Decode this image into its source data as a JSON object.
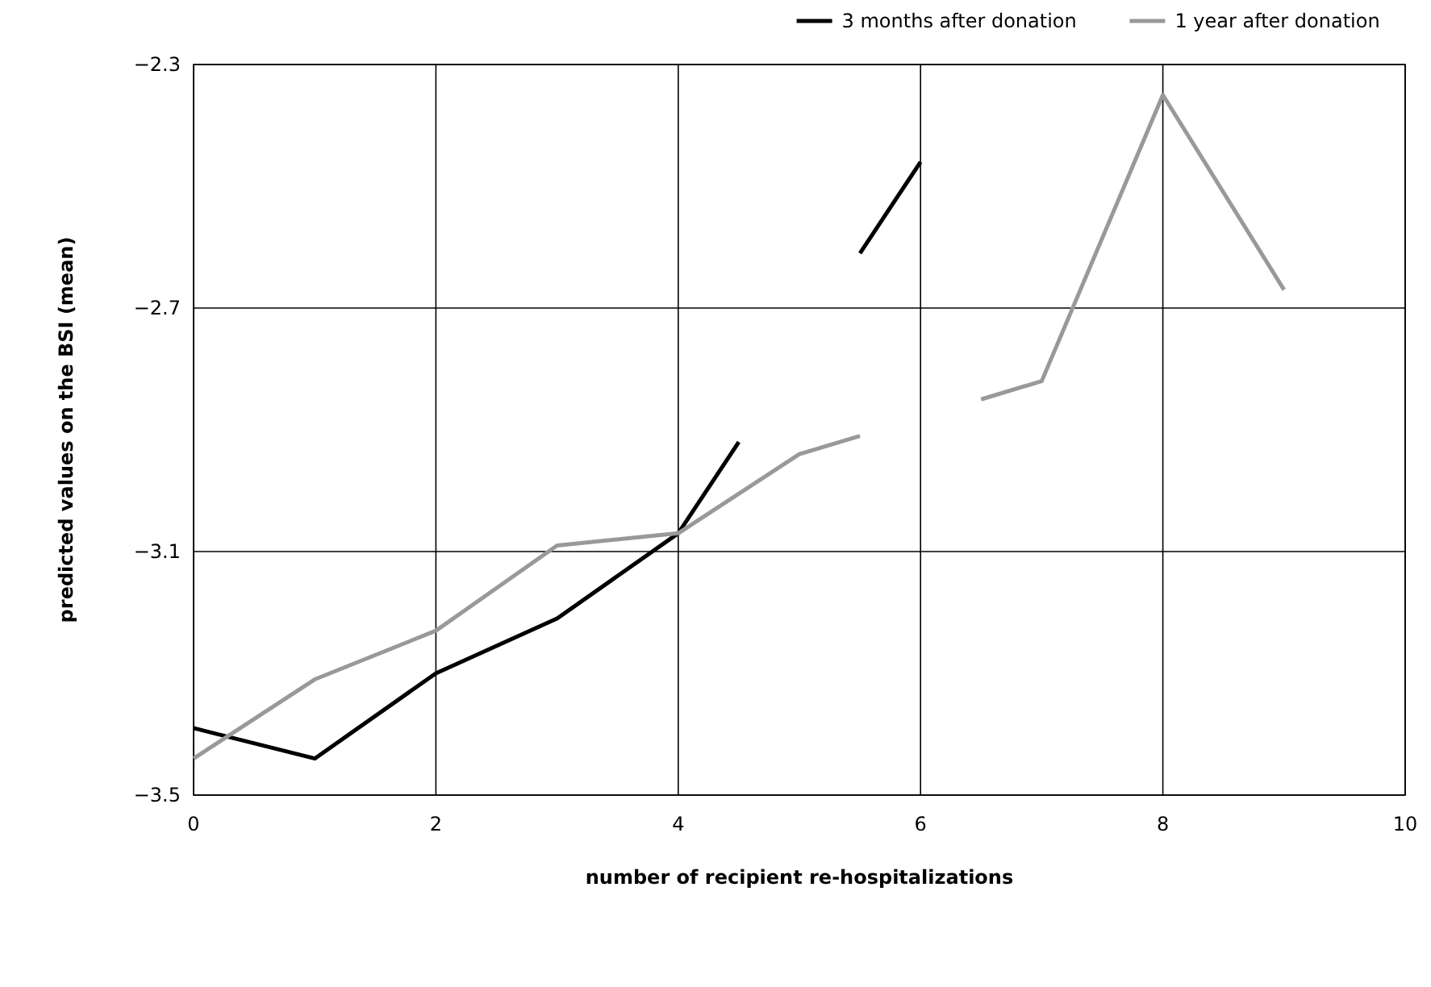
{
  "chart_data": {
    "type": "line",
    "xlabel": "number of recipient re-hospitalizations",
    "ylabel": "predicted values on the BSI (mean)",
    "xlim": [
      0,
      10
    ],
    "xticks": [
      0,
      2,
      4,
      6,
      8,
      10
    ],
    "ylim": [
      -3.5,
      -2.3
    ],
    "yticks": [
      {
        "value": -3.5,
        "label": "−3.5"
      },
      {
        "value": -3.1,
        "label": "−3.1"
      },
      {
        "value": -2.7,
        "label": "−2.7"
      },
      {
        "value": -2.3,
        "label": "−2.3"
      }
    ],
    "grid": true,
    "legend": "top right",
    "marker": "none",
    "line_style": "solid",
    "series": [
      {
        "name": "3 months after donation",
        "color": "#000000",
        "x": [
          0,
          1,
          2,
          3,
          4,
          4.5,
          5,
          5.5,
          6
        ],
        "values": [
          -3.39,
          -3.44,
          -3.3,
          -3.21,
          -3.07,
          -2.92,
          null,
          -2.61,
          -2.46
        ]
      },
      {
        "name": "1 year after donation",
        "color": "#999999",
        "x": [
          0,
          1,
          2,
          3,
          4,
          5,
          5.5,
          6,
          6.5,
          7,
          8,
          9
        ],
        "values": [
          -3.44,
          -3.31,
          -3.23,
          -3.09,
          -3.07,
          -2.94,
          -2.91,
          null,
          -2.85,
          -2.82,
          -2.35,
          -2.67
        ]
      }
    ]
  }
}
